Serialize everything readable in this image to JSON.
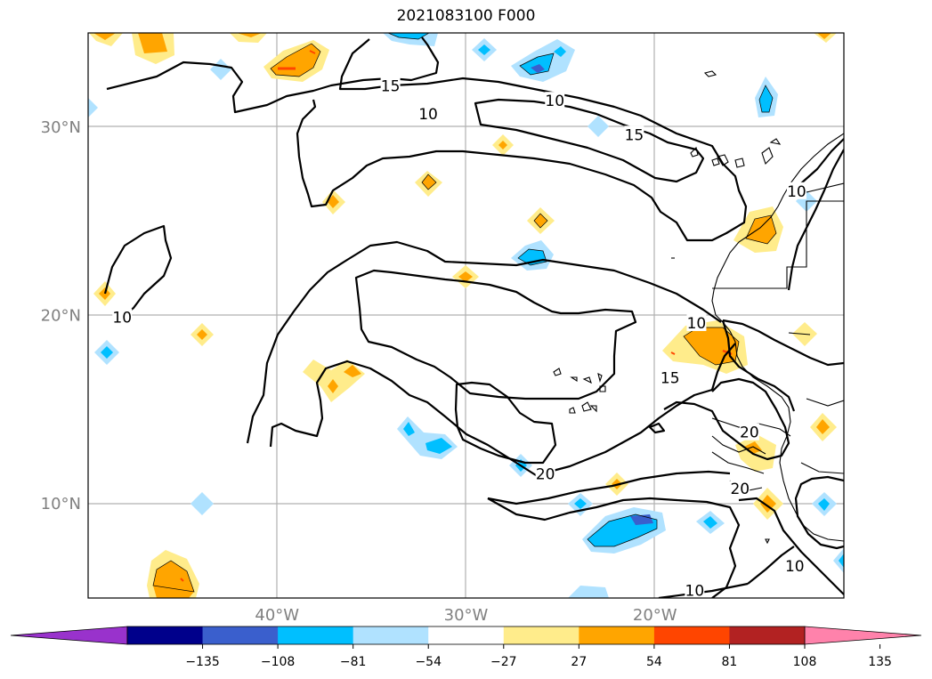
{
  "title": "2021083100 F000",
  "map": {
    "lat_labels": [
      "30°N",
      "20°N",
      "10°N"
    ],
    "lon_labels": [
      "40°W",
      "30°W",
      "20°W"
    ],
    "lat_values": [
      30,
      20,
      10
    ],
    "lon_values": [
      -40,
      -30,
      -20
    ],
    "lon_range": [
      -50,
      -10
    ],
    "lat_range": [
      5,
      35
    ],
    "contour_labels": [
      {
        "text": "15",
        "lon": -34,
        "lat": 32.2
      },
      {
        "text": "10",
        "lon": -32,
        "lat": 30.7
      },
      {
        "text": "10",
        "lon": -25.3,
        "lat": 31.4
      },
      {
        "text": "15",
        "lon": -21.1,
        "lat": 29.6
      },
      {
        "text": "10",
        "lon": -48.2,
        "lat": 19.9
      },
      {
        "text": "10",
        "lon": -12.5,
        "lat": 26.6
      },
      {
        "text": "10",
        "lon": -17.8,
        "lat": 19.6
      },
      {
        "text": "15",
        "lon": -19.2,
        "lat": 16.7
      },
      {
        "text": "20",
        "lon": -25.8,
        "lat": 11.6
      },
      {
        "text": "20",
        "lon": -15.5,
        "lat": 10.8
      },
      {
        "text": "20",
        "lon": -15,
        "lat": 13.8
      },
      {
        "text": "10",
        "lon": -12.6,
        "lat": 6.7
      },
      {
        "text": "10",
        "lon": -17.9,
        "lat": 5.4
      }
    ]
  },
  "colorbar": {
    "ticks": [
      "−135",
      "−108",
      "−81",
      "−54",
      "−27",
      "27",
      "54",
      "81",
      "108",
      "135"
    ],
    "colors": [
      "#9932cc",
      "#00008b",
      "#3a5fcd",
      "#00bfff",
      "#b0e2ff",
      "#ffffff",
      "#ffec8b",
      "#ffa500",
      "#ff4500",
      "#b22222",
      "#ff82ab"
    ]
  }
}
